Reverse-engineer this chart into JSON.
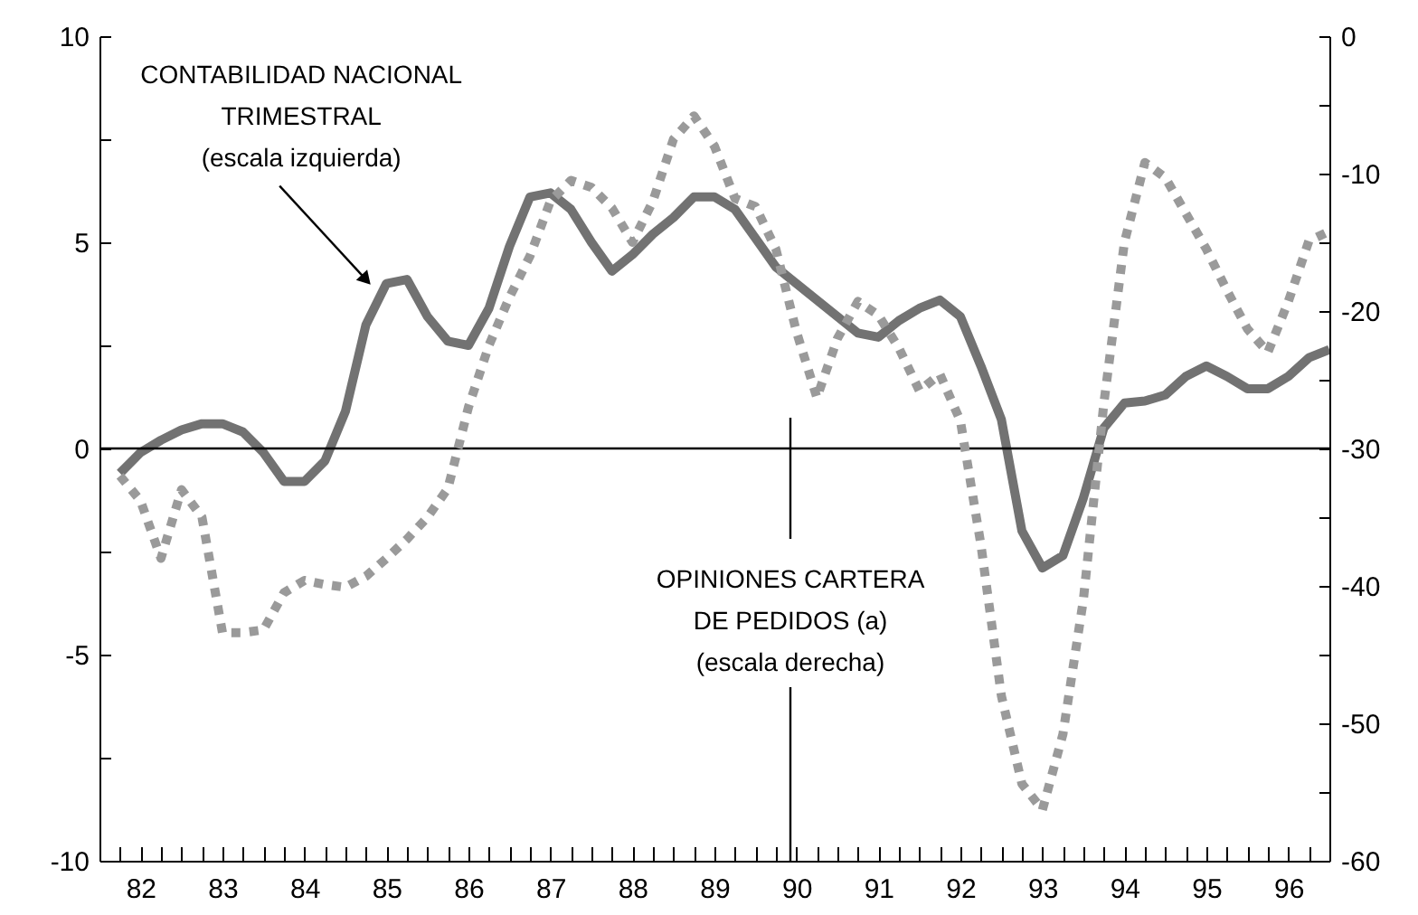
{
  "chart_data": {
    "type": "line",
    "x": [
      82.25,
      82.5,
      82.75,
      83,
      83.25,
      83.5,
      83.75,
      84,
      84.25,
      84.5,
      84.75,
      85,
      85.25,
      85.5,
      85.75,
      86,
      86.25,
      86.5,
      86.75,
      87,
      87.25,
      87.5,
      87.75,
      88,
      88.25,
      88.5,
      88.75,
      89,
      89.25,
      89.5,
      89.75,
      90,
      90.25,
      90.5,
      90.75,
      91,
      91.25,
      91.5,
      91.75,
      92,
      92.25,
      92.5,
      92.75,
      93,
      93.25,
      93.5,
      93.75,
      94,
      94.25,
      94.5,
      94.75,
      95,
      95.25,
      95.5,
      95.75,
      96,
      96.25,
      96.5,
      96.75,
      97
    ],
    "series": [
      {
        "color": "#727272",
        "line_style": "solid",
        "values": [
          -0.6,
          -0.1,
          0.2,
          0.45,
          0.6,
          0.6,
          0.4,
          -0.1,
          -0.8,
          -0.8,
          -0.3,
          0.9,
          3.0,
          4.0,
          4.1,
          3.2,
          2.6,
          2.5,
          3.4,
          4.9,
          6.1,
          6.2,
          5.8,
          5.0,
          4.3,
          4.7,
          5.2,
          5.6,
          6.1,
          6.1,
          5.8,
          5.1,
          4.4,
          4.0,
          3.6,
          3.2,
          2.8,
          2.7,
          3.1,
          3.4,
          3.6,
          3.2,
          2.0,
          0.7,
          -2.0,
          -2.9,
          -2.6,
          -1.2,
          0.5,
          1.1,
          1.15,
          1.3,
          1.75,
          2.0,
          1.75,
          1.45,
          1.45,
          1.75,
          2.2,
          2.4
        ]
      },
      {
        "color": "#9a9a9a",
        "line_style": "dotted",
        "axis": "y2",
        "values": [
          -32,
          -33.8,
          -38,
          -33,
          -35,
          -43.4,
          -43.4,
          -43.2,
          -40.5,
          -39.6,
          -39.9,
          -40.1,
          -39.3,
          -38,
          -36.6,
          -35,
          -32.9,
          -27,
          -22.5,
          -19,
          -16,
          -12,
          -10.5,
          -11,
          -12.5,
          -15,
          -12,
          -7.5,
          -5.8,
          -8,
          -11.8,
          -12.4,
          -15.5,
          -21.5,
          -26.3,
          -22,
          -19.3,
          -20.3,
          -22.7,
          -25.8,
          -24.6,
          -28,
          -37,
          -48,
          -54.4,
          -56.3,
          -50.8,
          -41,
          -26.7,
          -15,
          -9.2,
          -10.3,
          -12.9,
          -15.5,
          -18.5,
          -21.3,
          -23,
          -19.3,
          -14.9,
          -14.2
        ]
      }
    ],
    "xlim": [
      82,
      97
    ],
    "xticks": [
      {
        "value": 82,
        "label": null
      },
      {
        "value": 82.25,
        "label": null
      },
      {
        "value": 82.5,
        "label": "82"
      },
      {
        "value": 82.75,
        "label": null
      },
      {
        "value": 83,
        "label": null
      },
      {
        "value": 83.25,
        "label": null
      },
      {
        "value": 83.5,
        "label": "83"
      },
      {
        "value": 83.75,
        "label": null
      },
      {
        "value": 84,
        "label": null
      },
      {
        "value": 84.25,
        "label": null
      },
      {
        "value": 84.5,
        "label": "84"
      },
      {
        "value": 84.75,
        "label": null
      },
      {
        "value": 85,
        "label": null
      },
      {
        "value": 85.25,
        "label": null
      },
      {
        "value": 85.5,
        "label": "85"
      },
      {
        "value": 85.75,
        "label": null
      },
      {
        "value": 86,
        "label": null
      },
      {
        "value": 86.25,
        "label": null
      },
      {
        "value": 86.5,
        "label": "86"
      },
      {
        "value": 86.75,
        "label": null
      },
      {
        "value": 87,
        "label": null
      },
      {
        "value": 87.25,
        "label": null
      },
      {
        "value": 87.5,
        "label": "87"
      },
      {
        "value": 87.75,
        "label": null
      },
      {
        "value": 88,
        "label": null
      },
      {
        "value": 88.25,
        "label": null
      },
      {
        "value": 88.5,
        "label": "88"
      },
      {
        "value": 88.75,
        "label": null
      },
      {
        "value": 89,
        "label": null
      },
      {
        "value": 89.25,
        "label": null
      },
      {
        "value": 89.5,
        "label": "89"
      },
      {
        "value": 89.75,
        "label": null
      },
      {
        "value": 90,
        "label": null
      },
      {
        "value": 90.25,
        "label": null
      },
      {
        "value": 90.5,
        "label": "90"
      },
      {
        "value": 90.75,
        "label": null
      },
      {
        "value": 91,
        "label": null
      },
      {
        "value": 91.25,
        "label": null
      },
      {
        "value": 91.5,
        "label": "91"
      },
      {
        "value": 91.75,
        "label": null
      },
      {
        "value": 92,
        "label": null
      },
      {
        "value": 92.25,
        "label": null
      },
      {
        "value": 92.5,
        "label": "92"
      },
      {
        "value": 92.75,
        "label": null
      },
      {
        "value": 93,
        "label": null
      },
      {
        "value": 93.25,
        "label": null
      },
      {
        "value": 93.5,
        "label": "93"
      },
      {
        "value": 93.75,
        "label": null
      },
      {
        "value": 94,
        "label": null
      },
      {
        "value": 94.25,
        "label": null
      },
      {
        "value": 94.5,
        "label": "94"
      },
      {
        "value": 94.75,
        "label": null
      },
      {
        "value": 95,
        "label": null
      },
      {
        "value": 95.25,
        "label": null
      },
      {
        "value": 95.5,
        "label": "95"
      },
      {
        "value": 95.75,
        "label": null
      },
      {
        "value": 96,
        "label": null
      },
      {
        "value": 96.25,
        "label": null
      },
      {
        "value": 96.5,
        "label": "96"
      },
      {
        "value": 96.75,
        "label": null
      },
      {
        "value": 97,
        "label": null
      }
    ],
    "ylim": [
      -10,
      10
    ],
    "yticks": [
      -10,
      {
        "value": -7.5,
        "label": null
      },
      -5,
      {
        "value": -2.5,
        "label": null
      },
      0,
      {
        "value": 2.5,
        "label": null
      },
      5,
      {
        "value": 7.5,
        "label": null
      },
      10
    ],
    "y2lim": [
      -60,
      0
    ],
    "y2ticks": [
      -60,
      {
        "value": -55,
        "label": null
      },
      -50,
      {
        "value": -45,
        "label": null
      },
      -40,
      {
        "value": -35,
        "label": null
      },
      -30,
      {
        "value": -25,
        "label": null
      },
      -20,
      {
        "value": -15,
        "label": null
      },
      -10,
      {
        "value": -5,
        "label": null
      },
      0
    ],
    "ref_lines": [
      {
        "axis": "y",
        "value": 0,
        "color": "#000000"
      }
    ],
    "annotations": [
      {
        "text": "CONTABILIDAD NACIONAL\nTRIMESTRAL\n(escala izquierda)",
        "x": 85.3,
        "y": 4.0
      },
      "OPINIONES CARTERA\nDE PEDIDOS (a)\n(escala derecha)"
    ],
    "grid": false
  }
}
